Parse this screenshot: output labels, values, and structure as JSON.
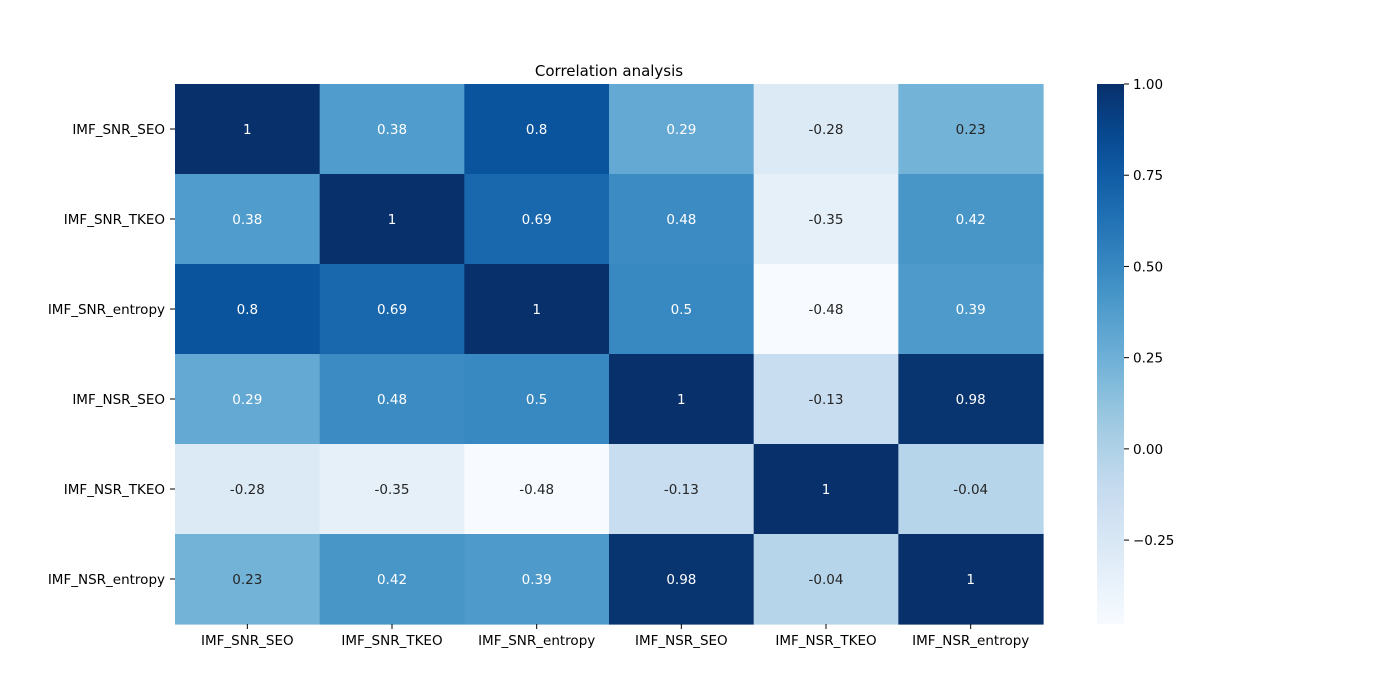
{
  "chart_data": {
    "type": "heatmap",
    "title": "Correlation analysis",
    "xlabel": "",
    "ylabel": "",
    "x_categories": [
      "IMF_SNR_SEO",
      "IMF_SNR_TKEO",
      "IMF_SNR_entropy",
      "IMF_NSR_SEO",
      "IMF_NSR_TKEO",
      "IMF_NSR_entropy"
    ],
    "y_categories": [
      "IMF_SNR_SEO",
      "IMF_SNR_TKEO",
      "IMF_SNR_entropy",
      "IMF_NSR_SEO",
      "IMF_NSR_TKEO",
      "IMF_NSR_entropy"
    ],
    "values": [
      [
        1,
        0.38,
        0.8,
        0.29,
        -0.28,
        0.23
      ],
      [
        0.38,
        1,
        0.69,
        0.48,
        -0.35,
        0.42
      ],
      [
        0.8,
        0.69,
        1,
        0.5,
        -0.48,
        0.39
      ],
      [
        0.29,
        0.48,
        0.5,
        1,
        -0.13,
        0.98
      ],
      [
        -0.28,
        -0.35,
        -0.48,
        -0.13,
        1,
        -0.04
      ],
      [
        0.23,
        0.42,
        0.39,
        0.98,
        -0.04,
        1
      ]
    ],
    "value_labels": [
      [
        "1",
        "0.38",
        "0.8",
        "0.29",
        "-0.28",
        "0.23"
      ],
      [
        "0.38",
        "1",
        "0.69",
        "0.48",
        "-0.35",
        "0.42"
      ],
      [
        "0.8",
        "0.69",
        "1",
        "0.5",
        "-0.48",
        "0.39"
      ],
      [
        "0.29",
        "0.48",
        "0.5",
        "1",
        "-0.13",
        "0.98"
      ],
      [
        "-0.28",
        "-0.35",
        "-0.48",
        "-0.13",
        "1",
        "-0.04"
      ],
      [
        "0.23",
        "0.42",
        "0.39",
        "0.98",
        "-0.04",
        "1"
      ]
    ],
    "colormap": "Blues",
    "vmin": -0.48,
    "vmax": 1,
    "colorbar_ticks": [
      1.0,
      0.75,
      0.5,
      0.25,
      0.0,
      -0.25
    ],
    "colorbar_tick_labels": [
      "1.00",
      "0.75",
      "0.50",
      "0.25",
      "0.00",
      "−0.25"
    ],
    "annotation_colors": {
      "light": "#ffffff",
      "dark": "#262626"
    },
    "grid": false
  }
}
